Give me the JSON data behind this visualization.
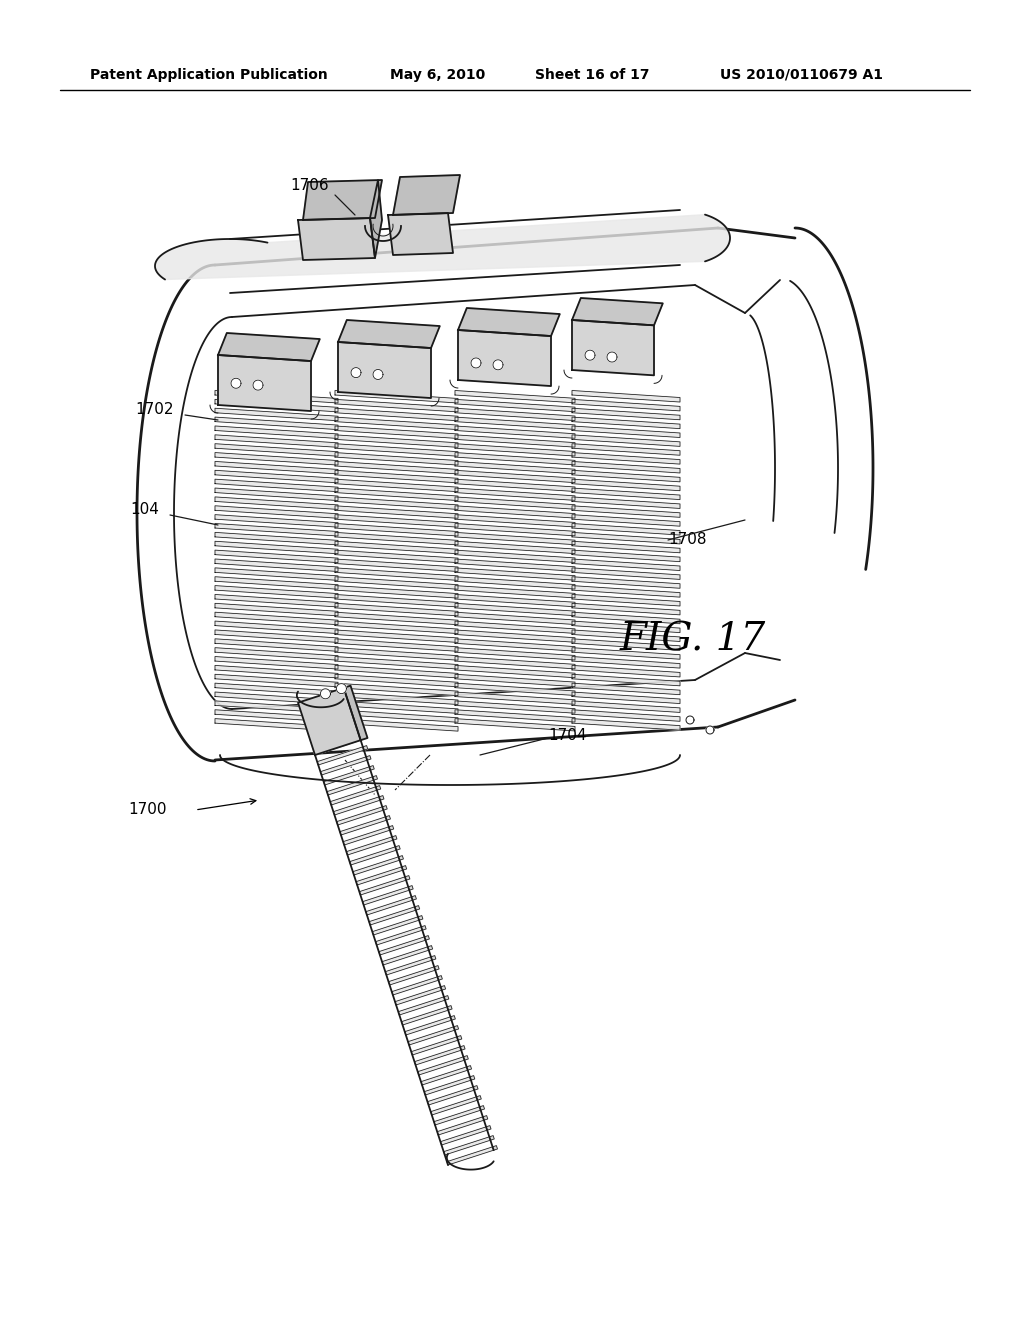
{
  "background_color": "#ffffff",
  "header_text": "Patent Application Publication",
  "header_date": "May 6, 2010",
  "header_sheet": "Sheet 16 of 17",
  "header_patent": "US 2010/0110679 A1",
  "figure_label": "FIG. 17",
  "line_color": "#1a1a1a",
  "text_color": "#000000",
  "fin_color": "#e0e0e0",
  "block_color": "#cccccc",
  "housing_fill": "#f0f0f0",
  "label_1706": "1706",
  "label_1702": "1702",
  "label_104": "104",
  "label_1708": "1708",
  "label_1704": "1704",
  "label_1700": "1700"
}
